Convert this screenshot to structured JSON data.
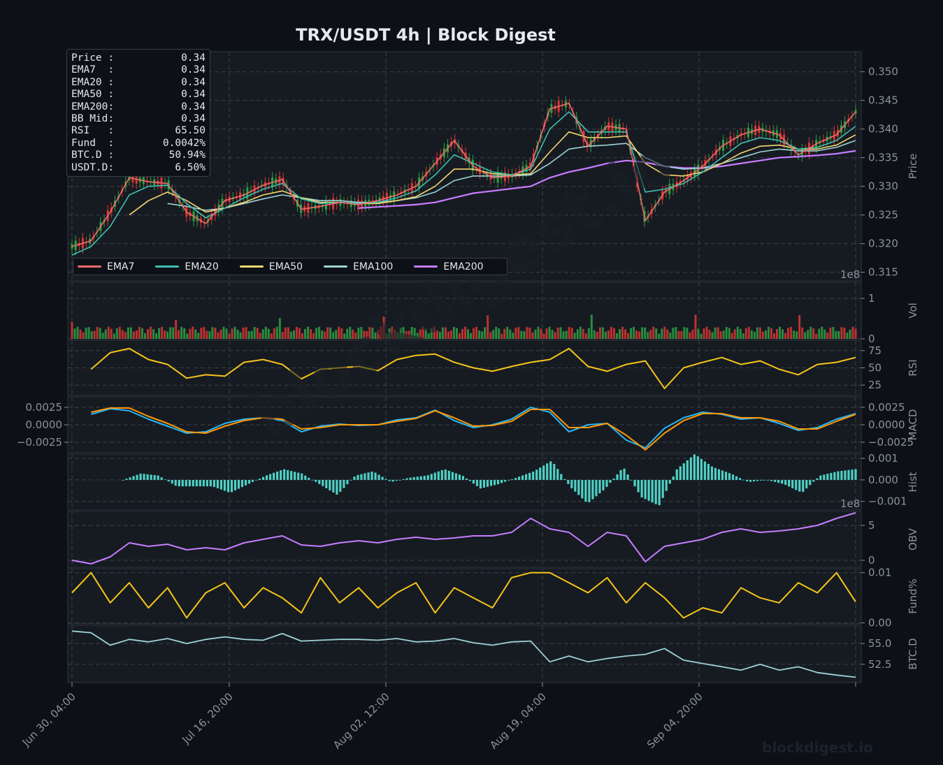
{
  "title": "TRX/USDT  4h  |  Block Digest",
  "watermark": "blockdigest.io",
  "brand": "blockdigest.io",
  "info_box": [
    {
      "label": "Price :",
      "value": "0.34"
    },
    {
      "label": "EMA7  :",
      "value": "0.34"
    },
    {
      "label": "EMA20 :",
      "value": "0.34"
    },
    {
      "label": "EMA50 :",
      "value": "0.34"
    },
    {
      "label": "EMA200:",
      "value": "0.34"
    },
    {
      "label": "BB Mid:",
      "value": "0.34"
    },
    {
      "label": "RSI   :",
      "value": "65.50"
    },
    {
      "label": "Fund  :",
      "value": "0.0042%"
    },
    {
      "label": "BTC.D :",
      "value": "50.94%"
    },
    {
      "label": "USDT.D:",
      "value": "6.50%"
    }
  ],
  "legend": [
    {
      "name": "EMA7",
      "color": "#f06b6b"
    },
    {
      "name": "EMA20",
      "color": "#3fbfb0"
    },
    {
      "name": "EMA50",
      "color": "#f5d76e"
    },
    {
      "name": "EMA100",
      "color": "#9ed3d6"
    },
    {
      "name": "EMA200",
      "color": "#c77dff"
    }
  ],
  "x_ticks": [
    "Jun 30, 04:00",
    "Jul 16, 20:00",
    "Aug 02, 12:00",
    "Aug 19, 04:00",
    "Sep 04, 20:00"
  ],
  "chart_data": {
    "type": "line",
    "x_range": [
      "Jun 30, 04:00",
      "Sep 19, 00:00"
    ],
    "panels": [
      {
        "name": "price",
        "ylabel": "Price",
        "ylim": [
          0.3135,
          0.3535
        ],
        "ticks": [
          "0.315",
          "0.320",
          "0.325",
          "0.330",
          "0.335",
          "0.340",
          "0.345",
          "0.350"
        ],
        "series": [
          {
            "name": "EMA7",
            "color": "#f06b6b",
            "values": [
              0.3195,
              0.3205,
              0.3255,
              0.3315,
              0.3308,
              0.3305,
              0.3255,
              0.3235,
              0.3275,
              0.3285,
              0.3302,
              0.3312,
              0.326,
              0.3265,
              0.3272,
              0.3268,
              0.3275,
              0.3285,
              0.33,
              0.334,
              0.338,
              0.3335,
              0.3315,
              0.3318,
              0.3335,
              0.3435,
              0.3445,
              0.337,
              0.3405,
              0.34,
              0.324,
              0.329,
              0.331,
              0.3335,
              0.337,
              0.339,
              0.34,
              0.339,
              0.3355,
              0.3375,
              0.339,
              0.343
            ]
          },
          {
            "name": "EMA20",
            "color": "#3fbfb0",
            "values": [
              0.318,
              0.3195,
              0.323,
              0.3285,
              0.33,
              0.3302,
              0.327,
              0.3245,
              0.3262,
              0.328,
              0.3295,
              0.3305,
              0.3278,
              0.327,
              0.3272,
              0.327,
              0.3272,
              0.328,
              0.3292,
              0.332,
              0.3355,
              0.334,
              0.3325,
              0.332,
              0.333,
              0.34,
              0.343,
              0.3395,
              0.3395,
              0.3395,
              0.329,
              0.3295,
              0.3305,
              0.3325,
              0.335,
              0.3375,
              0.3385,
              0.338,
              0.3365,
              0.3368,
              0.338,
              0.3405
            ]
          },
          {
            "name": "EMA50",
            "color": "#f5d76e",
            "values": [
              null,
              null,
              null,
              0.325,
              0.3275,
              0.329,
              0.3275,
              0.3255,
              0.3262,
              0.3272,
              0.3285,
              0.3292,
              0.328,
              0.3272,
              0.3272,
              0.327,
              0.327,
              0.3275,
              0.3282,
              0.33,
              0.333,
              0.333,
              0.3322,
              0.332,
              0.3322,
              0.336,
              0.3395,
              0.3385,
              0.3385,
              0.3388,
              0.334,
              0.332,
              0.3318,
              0.3325,
              0.334,
              0.3358,
              0.337,
              0.3372,
              0.3365,
              0.3365,
              0.3372,
              0.339
            ]
          },
          {
            "name": "EMA100",
            "color": "#9ed3d6",
            "values": [
              null,
              null,
              null,
              null,
              null,
              0.327,
              0.3265,
              0.3258,
              0.3262,
              0.327,
              0.3278,
              0.3285,
              0.328,
              0.3275,
              0.3275,
              0.3272,
              0.3272,
              0.3275,
              0.328,
              0.329,
              0.331,
              0.3318,
              0.3318,
              0.3318,
              0.332,
              0.334,
              0.3365,
              0.337,
              0.3372,
              0.3375,
              0.335,
              0.3335,
              0.333,
              0.3332,
              0.334,
              0.335,
              0.336,
              0.3365,
              0.3362,
              0.3362,
              0.3368,
              0.338
            ]
          },
          {
            "name": "EMA200",
            "color": "#c77dff",
            "values": [
              null,
              null,
              null,
              null,
              null,
              null,
              null,
              null,
              null,
              null,
              null,
              null,
              null,
              null,
              null,
              0.3262,
              0.3264,
              0.3266,
              0.3268,
              0.3272,
              0.328,
              0.3288,
              0.3292,
              0.3296,
              0.33,
              0.3315,
              0.3325,
              0.3332,
              0.334,
              0.3345,
              0.3342,
              0.3335,
              0.3332,
              0.3332,
              0.3335,
              0.334,
              0.3345,
              0.335,
              0.3352,
              0.3354,
              0.3357,
              0.3362
            ]
          }
        ]
      },
      {
        "name": "volume",
        "ylabel": "Vol",
        "ylim": [
          0,
          1.4
        ],
        "ticks": [
          "0",
          "1"
        ],
        "unit_label": "1e8"
      },
      {
        "name": "rsi",
        "ylabel": "RSI",
        "ylim": [
          10,
          90
        ],
        "ticks": [
          "25",
          "50",
          "75"
        ],
        "series": [
          {
            "name": "RSI",
            "color": "#f5c518",
            "values": [
              null,
              48,
              72,
              78,
              62,
              55,
              35,
              40,
              38,
              58,
              62,
              55,
              34,
              48,
              50,
              52,
              46,
              62,
              68,
              70,
              58,
              50,
              45,
              52,
              58,
              62,
              78,
              52,
              45,
              55,
              60,
              20,
              50,
              58,
              65,
              55,
              60,
              48,
              40,
              55,
              58,
              65
            ]
          }
        ]
      },
      {
        "name": "macd",
        "ylabel": "MACD",
        "ylim": [
          -0.004,
          0.004
        ],
        "ticks": [
          "0.0025",
          "0.0000",
          "−0.0025"
        ],
        "series": [
          {
            "name": "MACD",
            "color": "#29b6f6",
            "values": [
              null,
              0.0015,
              0.0023,
              0.002,
              0.0008,
              -0.0002,
              -0.0012,
              -0.001,
              0.0002,
              0.0008,
              0.001,
              0.0006,
              -0.001,
              -0.0002,
              0.0001,
              -0.0001,
              0.0,
              0.0007,
              0.001,
              0.0021,
              0.0006,
              -0.0004,
              0.0,
              0.0008,
              0.0025,
              0.0018,
              -0.001,
              0.0,
              0.0002,
              -0.0022,
              -0.0033,
              -0.0005,
              0.001,
              0.0018,
              0.0015,
              0.0008,
              0.001,
              0.0002,
              -0.0008,
              -0.0004,
              0.0008,
              0.0016
            ]
          },
          {
            "name": "Signal",
            "color": "#ff9800",
            "values": [
              null,
              0.0018,
              0.0024,
              0.0024,
              0.0012,
              0.0002,
              -0.001,
              -0.0012,
              -0.0002,
              0.0006,
              0.001,
              0.0008,
              -0.0006,
              -0.0004,
              0.0,
              0.0,
              0.0,
              0.0005,
              0.0009,
              0.002,
              0.001,
              -0.0002,
              -0.0001,
              0.0005,
              0.0022,
              0.0022,
              -0.0004,
              -0.0004,
              0.0002,
              -0.0015,
              -0.0036,
              -0.0012,
              0.0006,
              0.0016,
              0.0016,
              0.001,
              0.001,
              0.0005,
              -0.0006,
              -0.0006,
              0.0005,
              0.0015
            ]
          }
        ]
      },
      {
        "name": "hist",
        "ylabel": "Hist",
        "ylim": [
          -0.0014,
          0.0012
        ],
        "ticks": [
          "0.001",
          "0.000",
          "−0.001"
        ],
        "color": "#4fd1c5",
        "values": [
          0,
          0.0003,
          0.0002,
          -0.0003,
          -0.0003,
          -0.0003,
          -0.0006,
          -0.0002,
          0.0002,
          0.0005,
          0.0003,
          -0.0002,
          -0.0007,
          0.0002,
          0.0004,
          -0.0001,
          0.0001,
          0.0002,
          0.0005,
          0.0002,
          -0.0004,
          -0.0002,
          0.0001,
          0.0004,
          0.0009,
          -0.0003,
          -0.0011,
          -0.0004,
          0.0006,
          -0.0008,
          -0.0012,
          0.0005,
          0.0012,
          0.0006,
          0.0003,
          -0.0001,
          0.0,
          -0.0002,
          -0.0006,
          0.0002,
          0.0004,
          0.0005
        ]
      },
      {
        "name": "obv",
        "ylabel": "OBV",
        "ylim": [
          -1,
          7
        ],
        "ticks": [
          "0",
          "5"
        ],
        "unit_label": "1e8",
        "color": "#c77dff",
        "values": [
          0,
          -0.5,
          0.5,
          2.5,
          2,
          2.3,
          1.5,
          1.8,
          1.5,
          2.5,
          3,
          3.5,
          2.2,
          2,
          2.5,
          2.8,
          2.5,
          3,
          3.3,
          3,
          3.2,
          3.5,
          3.5,
          4,
          6,
          4.5,
          4,
          2,
          4,
          3.5,
          -0.2,
          2,
          2.5,
          3,
          4,
          4.5,
          4,
          4.2,
          4.5,
          5,
          6,
          6.8
        ]
      },
      {
        "name": "funding",
        "ylabel": "Fund%",
        "ylim": [
          -0.0002,
          0.0108
        ],
        "ticks": [
          "0.01",
          "0.00"
        ],
        "color": "#f5c518",
        "values": [
          0.006,
          0.01,
          0.004,
          0.008,
          0.003,
          0.007,
          0.001,
          0.006,
          0.008,
          0.003,
          0.007,
          0.005,
          0.002,
          0.009,
          0.004,
          0.007,
          0.003,
          0.006,
          0.008,
          0.002,
          0.007,
          0.005,
          0.003,
          0.009,
          0.01,
          0.01,
          0.008,
          0.006,
          0.009,
          0.004,
          0.008,
          0.005,
          0.001,
          0.003,
          0.002,
          0.007,
          0.005,
          0.004,
          0.008,
          0.006,
          0.01,
          0.0042
        ]
      },
      {
        "name": "btcd",
        "ylabel": "BTC.D",
        "ylim": [
          50.3,
          57.2
        ],
        "ticks": [
          "55.0",
          "52.5"
        ],
        "color": "#9ed3d6",
        "values": [
          56.5,
          56.3,
          54.8,
          55.5,
          55.2,
          55.6,
          55.0,
          55.5,
          55.8,
          55.5,
          55.4,
          56.2,
          55.3,
          55.4,
          55.5,
          55.5,
          55.4,
          55.6,
          55.2,
          55.3,
          55.6,
          55.1,
          54.8,
          55.2,
          55.3,
          52.8,
          53.5,
          52.8,
          53.2,
          53.5,
          53.7,
          54.4,
          53.0,
          52.6,
          52.2,
          51.8,
          52.5,
          51.8,
          52.2,
          51.5,
          51.2,
          50.94
        ]
      }
    ]
  }
}
